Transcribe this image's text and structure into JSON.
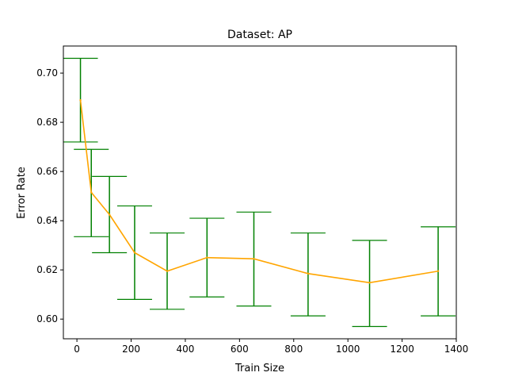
{
  "chart_data": {
    "type": "line",
    "title": "Dataset: AP",
    "xlabel": "Train Size",
    "ylabel": "Error Rate",
    "xlim": [
      -50,
      1400
    ],
    "ylim": [
      0.592,
      0.711
    ],
    "x_ticks": [
      0,
      200,
      400,
      600,
      800,
      1000,
      1200,
      1400
    ],
    "y_ticks": [
      0.6,
      0.62,
      0.64,
      0.66,
      0.68,
      0.7
    ],
    "grid": false,
    "series": [
      {
        "color": "#ffa500",
        "errorbar_color": "#008000",
        "x": [
          13,
          53,
          120,
          213,
          333,
          480,
          653,
          853,
          1080,
          1333
        ],
        "y": [
          0.689,
          0.6515,
          0.6425,
          0.627,
          0.6195,
          0.625,
          0.6245,
          0.6185,
          0.6148,
          0.6195
        ],
        "y_lower": [
          0.672,
          0.6335,
          0.627,
          0.608,
          0.604,
          0.609,
          0.6053,
          0.6013,
          0.597,
          0.6013
        ],
        "y_upper": [
          0.706,
          0.669,
          0.658,
          0.646,
          0.635,
          0.641,
          0.6435,
          0.635,
          0.632,
          0.6375
        ]
      }
    ]
  }
}
